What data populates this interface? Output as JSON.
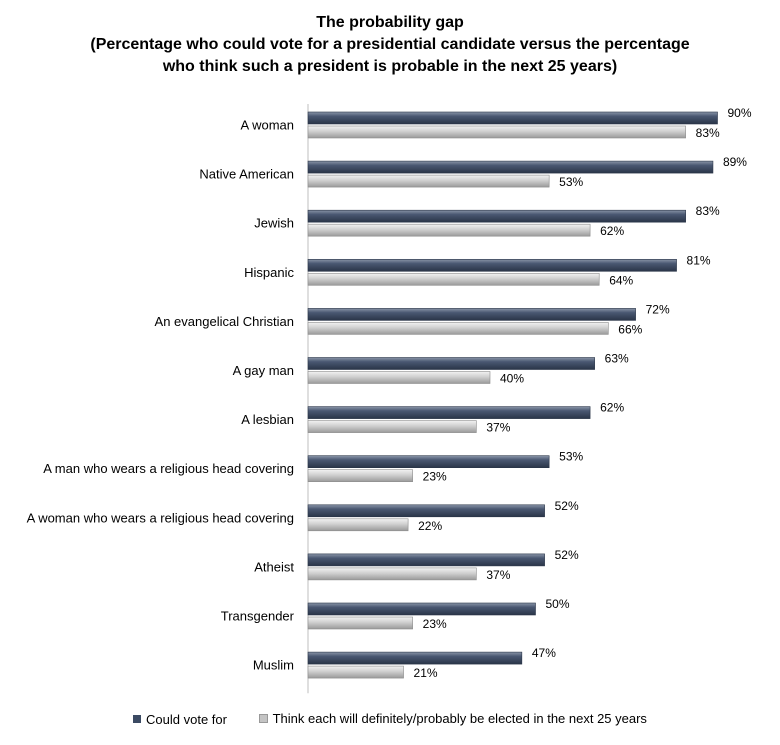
{
  "chart_data": {
    "type": "bar",
    "orientation": "horizontal",
    "title_lines": [
      "The probability gap",
      "(Percentage who could vote for a presidential candidate versus the percentage",
      "who think such a president is probable in the next 25 years)"
    ],
    "categories": [
      "A woman",
      "Native American",
      "Jewish",
      "Hispanic",
      "An evangelical Christian",
      "A gay man",
      "A lesbian",
      "A man who wears a religious head covering",
      "A woman who wears a religious head covering",
      "Atheist",
      "Transgender",
      "Muslim"
    ],
    "series": [
      {
        "name": "Could vote for",
        "color": "#3B4A63",
        "values": [
          90,
          89,
          83,
          81,
          72,
          63,
          62,
          53,
          52,
          52,
          50,
          47
        ]
      },
      {
        "name": "Think each will definitely/probably be elected in the next 25 years",
        "color": "#C4C4C4",
        "values": [
          83,
          53,
          62,
          64,
          66,
          40,
          37,
          23,
          22,
          37,
          23,
          21
        ]
      }
    ],
    "value_suffix": "%",
    "xlim": [
      0,
      100
    ],
    "xlabel": "",
    "ylabel": "",
    "grid": false,
    "legend_position": "bottom"
  }
}
